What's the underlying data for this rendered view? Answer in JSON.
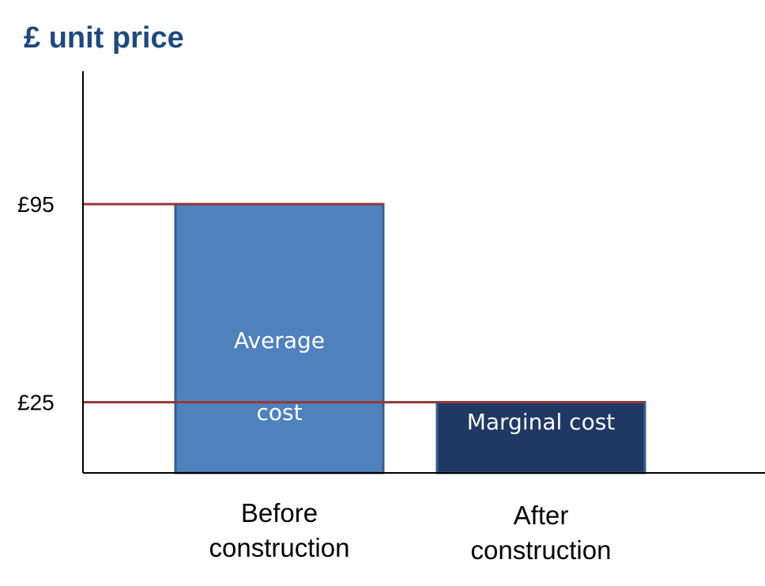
{
  "chart_data": {
    "type": "bar",
    "title": "£ unit price",
    "ylabel": "",
    "xlabel": "",
    "ylim": [
      0,
      142
    ],
    "categories": [
      "Before construction",
      "After construction"
    ],
    "category_label_lines": [
      [
        "Before",
        "construction"
      ],
      [
        "After",
        "construction"
      ]
    ],
    "values": [
      95,
      25
    ],
    "bar_labels": [
      [
        "Average",
        "cost"
      ],
      [
        "Marginal cost"
      ]
    ],
    "bar_colors": [
      "#4f81bd",
      "#1f3864"
    ],
    "bar_edge_color": "#385d8a",
    "bar_label_color": "#ffffff",
    "title_color": "#1f497d",
    "reference_line_color": "#953735",
    "axis_color": "#000000",
    "yticks": [
      {
        "value": 95,
        "label": "£95"
      },
      {
        "value": 25,
        "label": "£25"
      }
    ],
    "reference_lines": [
      95,
      25
    ],
    "grid": false,
    "legend": "none"
  }
}
